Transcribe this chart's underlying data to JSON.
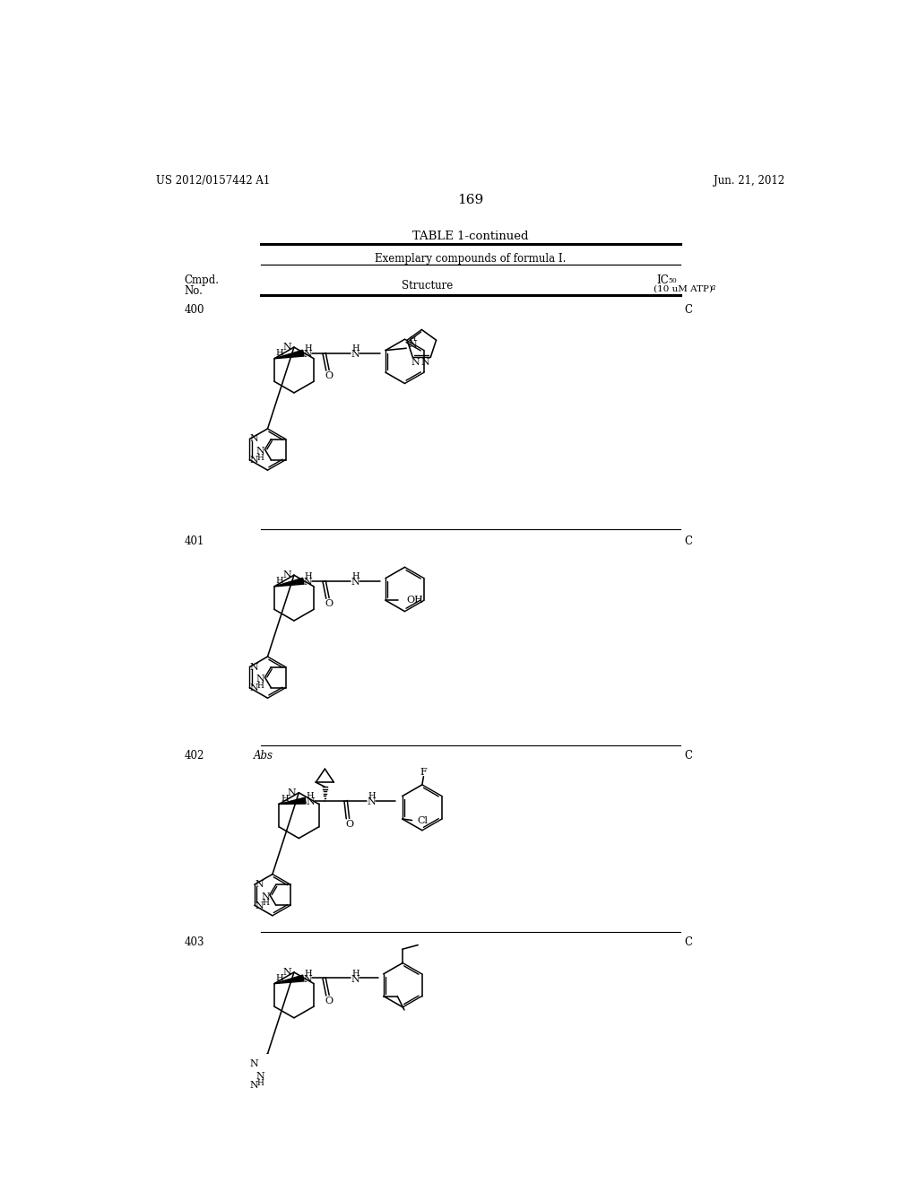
{
  "page_number": "169",
  "patent_left": "US 2012/0157442 A1",
  "patent_right": "Jun. 21, 2012",
  "table_title": "TABLE 1-continued",
  "table_subtitle": "Exemplary compounds of formula I.",
  "col1_header_line1": "Cmpd.",
  "col1_header_line2": "No.",
  "col2_header": "Structure",
  "col3_header_line1": "IC50",
  "col3_header_line2": "(10 uM ATP) a",
  "compounds": [
    {
      "no": "400",
      "ic50": "C"
    },
    {
      "no": "401",
      "ic50": "C"
    },
    {
      "no": "402",
      "ic50": "C",
      "note": "Abs"
    },
    {
      "no": "403",
      "ic50": "C"
    }
  ],
  "background": "#ffffff",
  "text_color": "#000000",
  "line_color": "#000000"
}
